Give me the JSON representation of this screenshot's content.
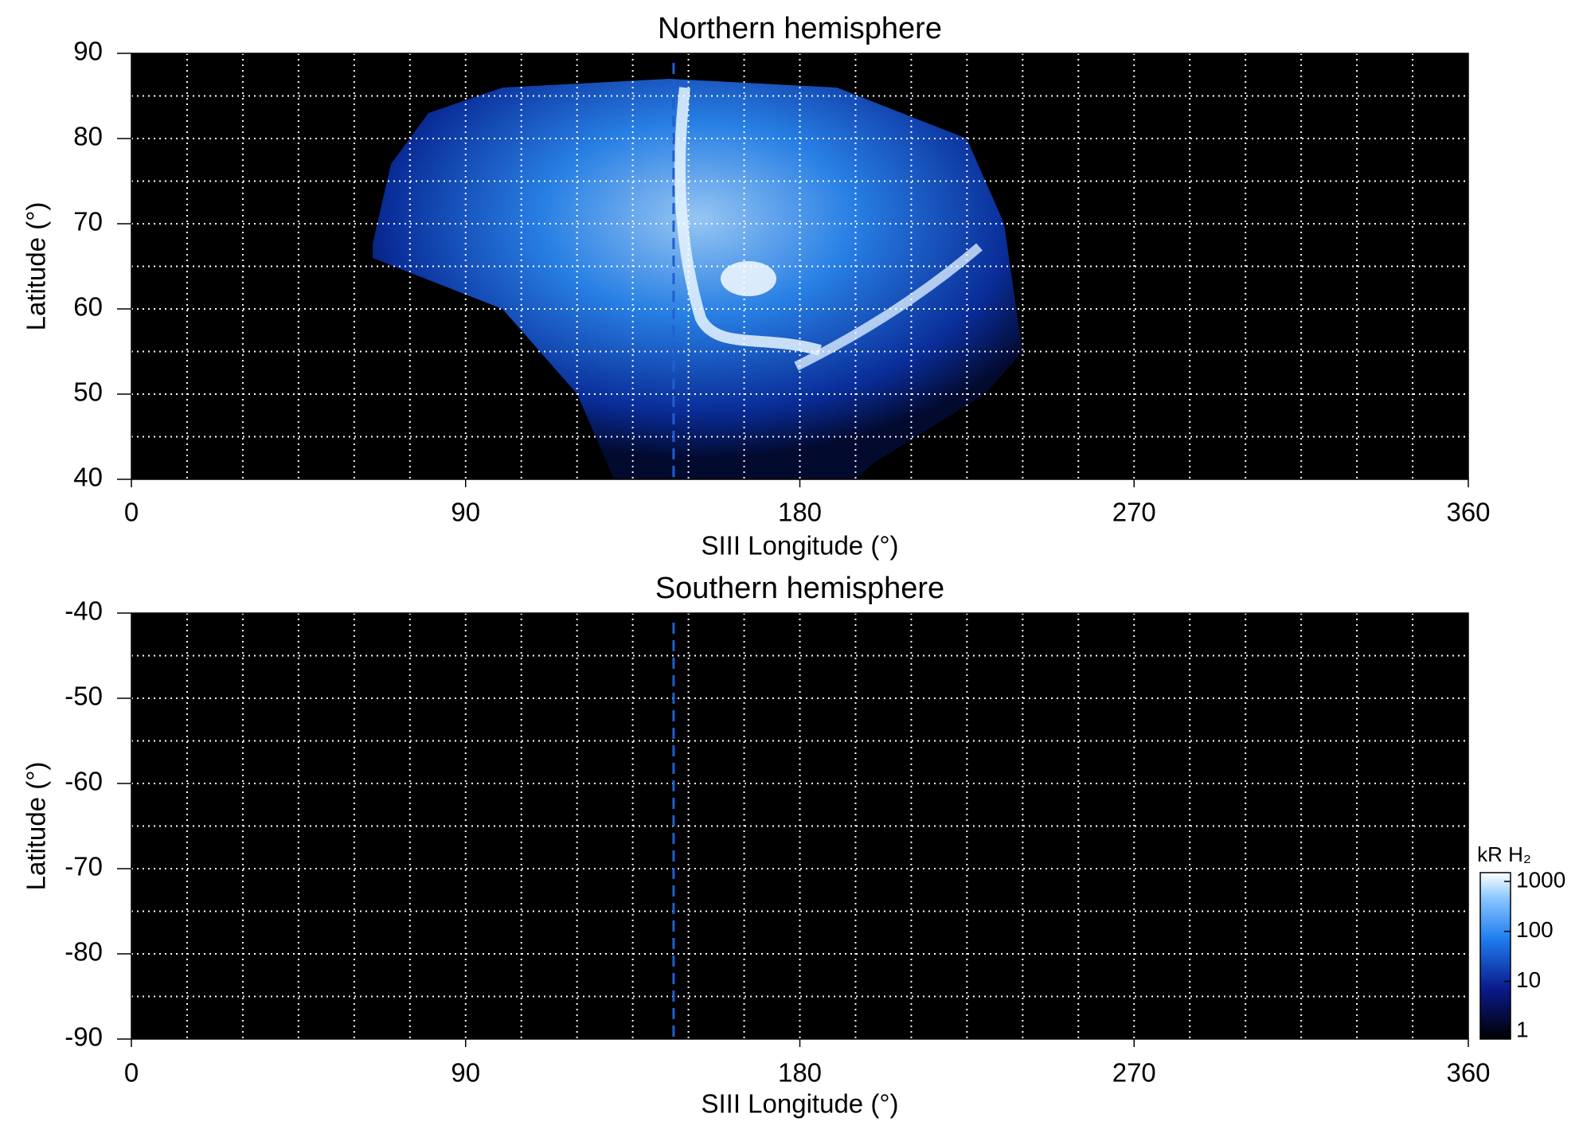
{
  "chart_data": [
    {
      "type": "heatmap",
      "title": "Northern hemisphere",
      "xlabel": "SIII Longitude (°)",
      "ylabel": "Latitude (°)",
      "xlim": [
        0,
        360
      ],
      "xticks": [
        0,
        90,
        180,
        270,
        360
      ],
      "ylim": [
        40,
        90
      ],
      "yticks": [
        40,
        50,
        60,
        70,
        80,
        90
      ],
      "xgrid": [
        15,
        30,
        45,
        60,
        75,
        90,
        105,
        120,
        135,
        150,
        165,
        180,
        195,
        210,
        225,
        240,
        255,
        270,
        285,
        300,
        315,
        330,
        345
      ],
      "ygrid": [
        45,
        50,
        55,
        60,
        65,
        70,
        75,
        80,
        85
      ],
      "vline_x": 146,
      "vline_color": "#1f5fcf",
      "background": "#000000"
    },
    {
      "type": "heatmap",
      "title": "Southern hemisphere",
      "xlabel": "SIII Longitude (°)",
      "ylabel": "Latitude (°)",
      "xlim": [
        0,
        360
      ],
      "xticks": [
        0,
        90,
        180,
        270,
        360
      ],
      "ylim": [
        -90,
        -40
      ],
      "yticks": [
        -90,
        -80,
        -70,
        -60,
        -50,
        -40
      ],
      "xgrid": [
        15,
        30,
        45,
        60,
        75,
        90,
        105,
        120,
        135,
        150,
        165,
        180,
        195,
        210,
        225,
        240,
        255,
        270,
        285,
        300,
        315,
        330,
        345
      ],
      "ygrid": [
        -85,
        -80,
        -75,
        -70,
        -65,
        -60,
        -55,
        -50,
        -45
      ],
      "vline_x": 146,
      "vline_color": "#1f5fcf",
      "background": "#000000",
      "colorbar": {
        "label": "kR H₂",
        "log_scale": true,
        "lim": [
          0.7,
          1500
        ],
        "ticks": [
          1,
          10,
          100,
          1000
        ]
      }
    }
  ]
}
